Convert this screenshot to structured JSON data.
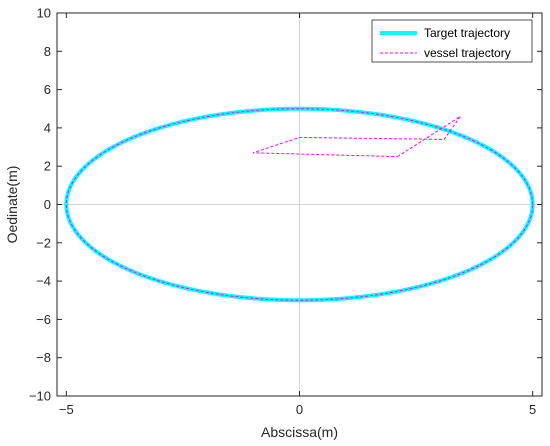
{
  "chart_data": {
    "type": "line",
    "xlabel": "Abscissa(m)",
    "ylabel": "Oedinate(m)",
    "xlim": [
      -5.2,
      5.2
    ],
    "ylim": [
      -10,
      10
    ],
    "xticks": [
      -5,
      0,
      5
    ],
    "yticks": [
      -10,
      -8,
      -6,
      -4,
      -2,
      0,
      2,
      4,
      6,
      8,
      10
    ],
    "grid": false,
    "zero_lines": true,
    "legend_position": "top-right",
    "series": [
      {
        "name": "Target trajectory",
        "style": "solid-thick",
        "color": "#00FFFF",
        "shape": "ellipse",
        "semi_axes": [
          5,
          5
        ]
      },
      {
        "name": "vessel trajectory",
        "style": "dashed",
        "color": "#FF00FF",
        "x": [
          2.1,
          3.45,
          3.1,
          0.0,
          -1.0,
          2.1
        ],
        "y": [
          2.5,
          4.6,
          3.4,
          3.5,
          2.7,
          2.5
        ],
        "then_follows": "Target trajectory"
      }
    ]
  }
}
